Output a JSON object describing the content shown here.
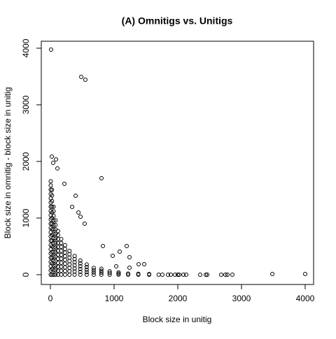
{
  "chart_data": {
    "type": "scatter",
    "title": "(A) Omnitigs vs. Unitigs",
    "x_label": "Block size in unitig",
    "y_label": "Block size in omnitig - block size in unitig",
    "xlim": [
      -143,
      4132
    ],
    "ylim": [
      -173,
      4123
    ],
    "xticks": [
      0,
      1000,
      2000,
      3000,
      4000
    ],
    "yticks": [
      0,
      1000,
      2000,
      3000,
      4000
    ],
    "color": "#000000",
    "grid": false,
    "x": [
      5,
      5,
      5,
      5,
      5,
      5,
      5,
      5,
      5,
      5,
      5,
      5,
      5,
      5,
      5,
      5,
      5,
      5,
      5,
      5,
      5,
      5,
      5,
      25,
      25,
      25,
      25,
      25,
      25,
      25,
      25,
      25,
      25,
      25,
      25,
      25,
      25,
      25,
      25,
      50,
      50,
      50,
      50,
      50,
      50,
      50,
      50,
      50,
      50,
      50,
      50,
      50,
      50,
      50,
      50,
      80,
      80,
      80,
      80,
      80,
      80,
      80,
      80,
      80,
      80,
      80,
      80,
      80,
      120,
      120,
      120,
      120,
      120,
      120,
      120,
      120,
      120,
      120,
      120,
      120,
      170,
      170,
      170,
      170,
      170,
      170,
      170,
      170,
      170,
      170,
      230,
      230,
      230,
      230,
      230,
      230,
      230,
      230,
      230,
      300,
      300,
      300,
      300,
      300,
      300,
      300,
      300,
      380,
      380,
      380,
      380,
      380,
      380,
      380,
      470,
      470,
      470,
      470,
      470,
      470,
      570,
      570,
      570,
      570,
      570,
      680,
      680,
      680,
      680,
      800,
      800,
      800,
      800,
      930,
      930,
      930,
      1070,
      1070,
      1070,
      1220,
      1220,
      1380,
      1380,
      1550,
      1550,
      1700,
      11,
      484,
      549,
      802,
      22,
      88,
      44,
      110,
      220,
      396,
      341,
      440,
      473,
      538,
      824,
      1088,
      1198,
      1242,
      978,
      1385,
      1473,
      1033,
      1242,
      3484,
      4000,
      2780,
      2857,
      2681,
      2462,
      2352,
      2132,
      2022,
      1956,
      1846,
      1758,
      1890,
      2000,
      2088,
      2440,
      2748
    ],
    "y": [
      0,
      75,
      150,
      225,
      300,
      375,
      450,
      525,
      600,
      675,
      750,
      825,
      900,
      975,
      1050,
      1125,
      1200,
      1275,
      1350,
      1425,
      1500,
      1575,
      1650,
      0,
      100,
      200,
      300,
      400,
      500,
      600,
      700,
      800,
      900,
      1000,
      1100,
      1200,
      1300,
      1400,
      1500,
      0,
      80,
      160,
      240,
      320,
      400,
      480,
      560,
      640,
      720,
      800,
      880,
      960,
      1040,
      1120,
      1200,
      0,
      80,
      160,
      240,
      320,
      400,
      480,
      560,
      640,
      720,
      800,
      880,
      960,
      0,
      70,
      140,
      210,
      280,
      350,
      420,
      490,
      560,
      630,
      700,
      770,
      0,
      70,
      140,
      210,
      280,
      350,
      420,
      490,
      560,
      630,
      0,
      65,
      130,
      195,
      260,
      325,
      390,
      455,
      520,
      0,
      60,
      120,
      180,
      240,
      300,
      360,
      420,
      0,
      55,
      110,
      165,
      220,
      275,
      330,
      0,
      50,
      100,
      150,
      200,
      250,
      0,
      45,
      90,
      135,
      180,
      0,
      40,
      80,
      120,
      0,
      35,
      70,
      105,
      0,
      30,
      60,
      0,
      20,
      40,
      0,
      20,
      0,
      15,
      0,
      10,
      0,
      3975,
      3494,
      3444,
      1704,
      2086,
      2037,
      1975,
      1877,
      1605,
      1395,
      1198,
      1099,
      1025,
      901,
      506,
      407,
      506,
      309,
      333,
      185,
      185,
      148,
      123,
      12,
      12,
      0,
      0,
      0,
      0,
      0,
      0,
      0,
      0,
      0,
      0,
      0,
      0,
      0,
      0,
      0
    ]
  }
}
